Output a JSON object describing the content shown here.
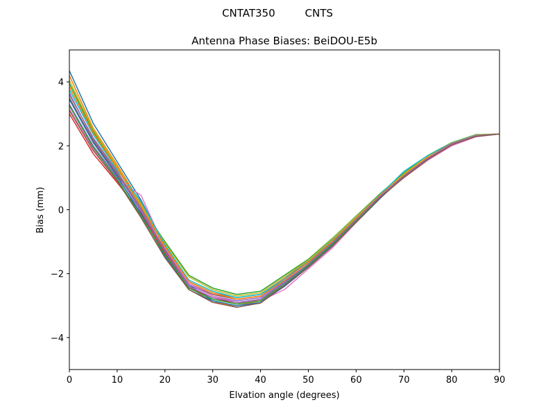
{
  "figure": {
    "suptitle": "CNTAT350         CNTS"
  },
  "chart_data": {
    "type": "line",
    "title": "Antenna Phase Biases: BeiDOU-E5b",
    "xlabel": "Elvation angle (degrees)",
    "ylabel": "Bias (mm)",
    "xlim": [
      0,
      90
    ],
    "ylim": [
      -5,
      5
    ],
    "xticks": [
      0,
      10,
      20,
      30,
      40,
      50,
      60,
      70,
      80,
      90
    ],
    "yticks": [
      -4,
      -2,
      0,
      2,
      4
    ],
    "x": [
      0,
      5,
      10,
      15,
      20,
      25,
      30,
      35,
      40,
      45,
      50,
      55,
      60,
      65,
      70,
      75,
      80,
      85,
      90
    ],
    "grid": false,
    "legend": "none",
    "series": [
      {
        "color": "#1f77b4",
        "values": [
          4.35,
          2.7,
          1.5,
          0.3,
          -1.1,
          -2.35,
          -2.85,
          -3.05,
          -2.9,
          -2.4,
          -1.8,
          -1.15,
          -0.4,
          0.35,
          1.05,
          1.6,
          2.05,
          2.3,
          2.37
        ]
      },
      {
        "color": "#ff7f0e",
        "values": [
          4.2,
          2.55,
          1.4,
          0.2,
          -1.2,
          -2.4,
          -2.9,
          -3.0,
          -2.85,
          -2.35,
          -1.75,
          -1.1,
          -0.35,
          0.4,
          1.1,
          1.62,
          2.07,
          2.3,
          2.37
        ]
      },
      {
        "color": "#2ca02c",
        "values": [
          3.95,
          2.45,
          1.3,
          0.1,
          -1.0,
          -2.05,
          -2.45,
          -2.65,
          -2.55,
          -2.05,
          -1.55,
          -0.9,
          -0.2,
          0.5,
          1.15,
          1.7,
          2.1,
          2.35,
          2.37
        ]
      },
      {
        "color": "#d62728",
        "values": [
          3.0,
          1.75,
          0.85,
          -0.1,
          -1.35,
          -2.45,
          -2.75,
          -2.95,
          -2.8,
          -2.3,
          -1.7,
          -1.05,
          -0.3,
          0.45,
          1.05,
          1.6,
          2.05,
          2.3,
          2.37
        ]
      },
      {
        "color": "#9467bd",
        "values": [
          3.3,
          2.0,
          1.0,
          -0.05,
          -1.3,
          -2.35,
          -2.7,
          -2.85,
          -2.75,
          -2.25,
          -1.7,
          -1.0,
          -0.3,
          0.42,
          1.05,
          1.6,
          2.05,
          2.3,
          2.37
        ]
      },
      {
        "color": "#8c564b",
        "values": [
          3.5,
          2.15,
          1.1,
          0.0,
          -1.25,
          -2.3,
          -2.65,
          -2.8,
          -2.7,
          -2.2,
          -1.65,
          -1.0,
          -0.28,
          0.44,
          1.07,
          1.62,
          2.06,
          2.31,
          2.37
        ]
      },
      {
        "color": "#e377c2",
        "values": [
          3.15,
          1.9,
          0.95,
          0.45,
          -1.2,
          -2.3,
          -2.7,
          -2.9,
          -2.85,
          -2.5,
          -1.85,
          -1.2,
          -0.4,
          0.4,
          1.0,
          1.55,
          2.0,
          2.28,
          2.37
        ]
      },
      {
        "color": "#7f7f7f",
        "values": [
          3.6,
          2.25,
          1.2,
          0.05,
          -1.15,
          -2.25,
          -2.6,
          -2.75,
          -2.65,
          -2.15,
          -1.6,
          -0.95,
          -0.25,
          0.46,
          1.08,
          1.63,
          2.07,
          2.32,
          2.37
        ]
      },
      {
        "color": "#bcbd22",
        "values": [
          4.05,
          2.5,
          1.35,
          0.15,
          -1.05,
          -2.1,
          -2.5,
          -2.7,
          -2.6,
          -2.1,
          -1.58,
          -0.92,
          -0.22,
          0.48,
          1.12,
          1.68,
          2.09,
          2.34,
          2.37
        ]
      },
      {
        "color": "#17becf",
        "values": [
          3.75,
          2.35,
          1.25,
          0.25,
          -1.1,
          -2.2,
          -2.55,
          -2.75,
          -2.65,
          -2.2,
          -1.62,
          -0.97,
          -0.26,
          0.47,
          1.2,
          1.7,
          2.08,
          2.33,
          2.37
        ]
      },
      {
        "color": "#1f77b4",
        "values": [
          3.45,
          2.1,
          1.05,
          -0.15,
          -1.45,
          -2.5,
          -2.85,
          -3.0,
          -2.9,
          -2.35,
          -1.78,
          -1.12,
          -0.38,
          0.38,
          1.02,
          1.58,
          2.04,
          2.29,
          2.37
        ]
      },
      {
        "color": "#ff7f0e",
        "values": [
          3.85,
          2.4,
          1.3,
          0.1,
          -1.15,
          -2.25,
          -2.6,
          -2.8,
          -2.7,
          -2.22,
          -1.64,
          -0.99,
          -0.27,
          0.45,
          1.09,
          1.64,
          2.07,
          2.32,
          2.37
        ]
      },
      {
        "color": "#2ca02c",
        "values": [
          3.25,
          1.95,
          0.95,
          -0.2,
          -1.4,
          -2.45,
          -2.8,
          -2.95,
          -2.85,
          -2.3,
          -1.74,
          -1.08,
          -0.34,
          0.4,
          1.04,
          1.6,
          2.05,
          2.3,
          2.37
        ]
      },
      {
        "color": "#9467bd",
        "values": [
          3.65,
          2.2,
          1.15,
          0.0,
          -1.3,
          -2.4,
          -2.75,
          -2.9,
          -2.8,
          -2.28,
          -1.7,
          -1.04,
          -0.31,
          0.42,
          1.06,
          1.61,
          2.06,
          2.31,
          2.37
        ]
      },
      {
        "color": "#8c564b",
        "values": [
          3.1,
          1.85,
          0.9,
          -0.25,
          -1.5,
          -2.5,
          -2.9,
          -3.05,
          -2.92,
          -2.38,
          -1.8,
          -1.14,
          -0.39,
          0.37,
          1.01,
          1.57,
          2.03,
          2.29,
          2.37
        ]
      }
    ]
  }
}
